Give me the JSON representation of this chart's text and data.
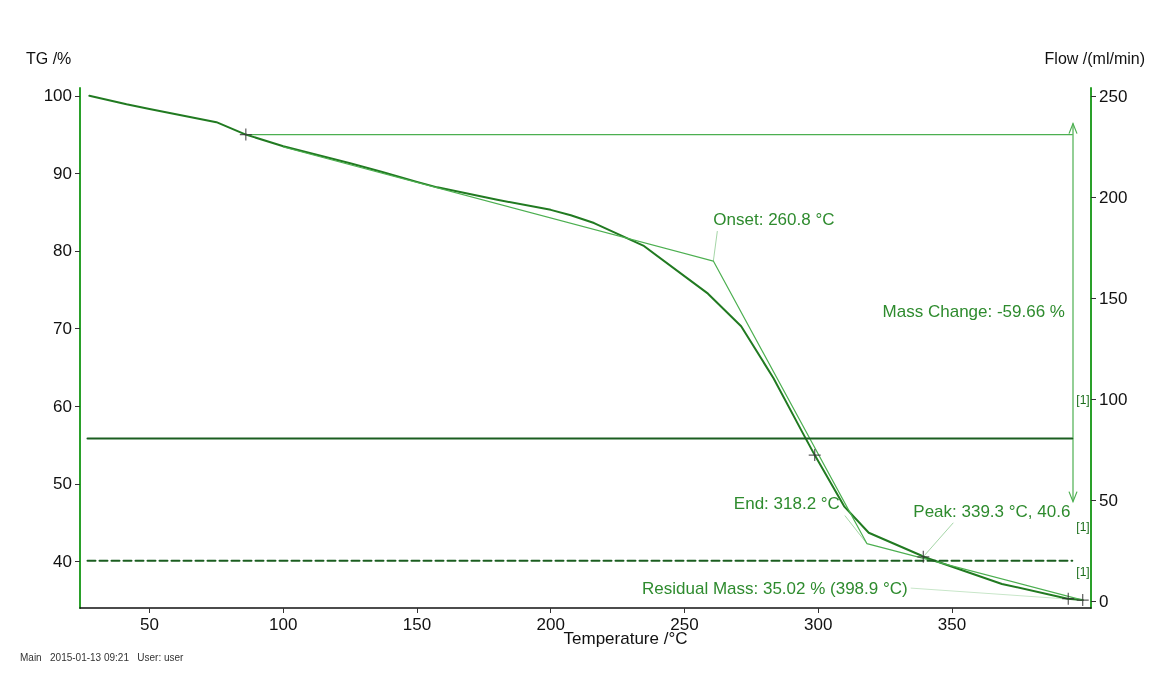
{
  "chart_data": {
    "type": "line",
    "xlabel": "Temperature /°C",
    "ylabel": "TG /%",
    "y2label": "Flow /(ml/min)",
    "xlim": [
      24,
      402
    ],
    "xticks": [
      50,
      100,
      150,
      200,
      250,
      300,
      350
    ],
    "ylim": [
      34,
      101
    ],
    "yticks": [
      40,
      50,
      60,
      70,
      80,
      90,
      100
    ],
    "y2lim": [
      -3.4,
      254
    ],
    "y2ticks": [
      0,
      50,
      100,
      150,
      200,
      250
    ],
    "series": [
      {
        "color": "#217a21",
        "x": [
          27.5,
          41.4,
          50,
          75,
          86,
          100,
          125,
          136.7,
          150,
          157.6,
          180,
          200,
          207.5,
          216.2,
          234.6,
          258.8,
          271.2,
          283.3,
          294.3,
          298.7,
          309.7,
          318.9,
          338.3,
          339.3,
          368.7,
          393.3,
          398.9
        ],
        "values": [
          100,
          98.9,
          98.3,
          96.6,
          95,
          93.5,
          91.3,
          90.2,
          88.9,
          88.2,
          86.6,
          85.3,
          84.6,
          83.6,
          80.7,
          74.5,
          70.3,
          63.6,
          56.5,
          53.7,
          47.1,
          43.7,
          40.8,
          40.6,
          37.1,
          35.2,
          35.02
        ]
      },
      {
        "color": "#4caf50",
        "x": [
          86,
          395
        ],
        "values": [
          95,
          95
        ]
      },
      {
        "color": "#4caf50",
        "x": [
          100,
          260.8,
          318.2,
          398.9
        ],
        "values": [
          93.4,
          78.7,
          42.3,
          35.02
        ]
      },
      {
        "color": "#1b5e20",
        "axis": "y2",
        "x": [
          26.8,
          395
        ],
        "values": [
          80.5,
          80.5
        ]
      },
      {
        "color": "#1b5e20",
        "axis": "y2",
        "line_style": "dashed",
        "x": [
          26.8,
          395
        ],
        "values": [
          20,
          20
        ]
      },
      {
        "type": "scatter",
        "color": "#333333",
        "marker": "cross",
        "x": [
          86,
          298.7,
          339.3,
          393.5,
          398.9
        ],
        "values": [
          95,
          53.7,
          40.6,
          35.2,
          35.02
        ]
      }
    ],
    "annotations": [
      {
        "text": "Onset: 260.8 °C",
        "x": 260.8,
        "y": 78.7
      },
      {
        "text": "End: 318.2 °C",
        "x": 318.2,
        "y": 42.3
      },
      {
        "text": "Peak: 339.3 °C, 40.6",
        "x": 339.3,
        "y": 40.6
      },
      {
        "text": "Residual Mass: 35.02 % (398.9 °C)",
        "x": 398.9,
        "y": 35.02
      },
      "Mass Change: -59.66 %",
      "[1]",
      "[1]",
      "[1]",
      "Main   2015-01-13 09:21   User: user"
    ]
  }
}
